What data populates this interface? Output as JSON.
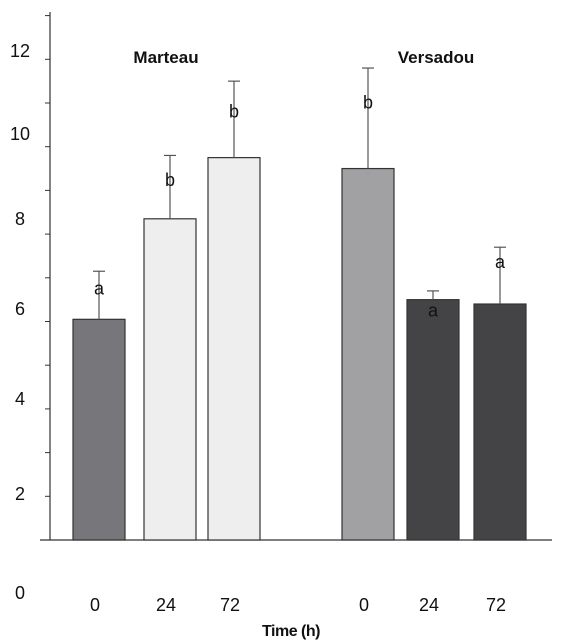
{
  "chart_data": {
    "type": "bar",
    "xlabel": "Time (h)",
    "ylabel": "",
    "ylim": [
      0,
      12.5
    ],
    "y_ticks": [
      "0",
      "2",
      "4",
      "6",
      "8",
      "10",
      "12"
    ],
    "groups": [
      {
        "label": "Marteau",
        "bars": [
          {
            "category": "0",
            "value": 5.05,
            "error": 1.1,
            "significance": "a",
            "color": "#77777b"
          },
          {
            "category": "24",
            "value": 7.35,
            "error": 1.45,
            "significance": "b",
            "color": "#eeeeee"
          },
          {
            "category": "72",
            "value": 8.75,
            "error": 1.75,
            "significance": "b",
            "color": "#eeeeee"
          }
        ]
      },
      {
        "label": "Versadou",
        "bars": [
          {
            "category": "0",
            "value": 8.5,
            "error": 2.3,
            "significance": "b",
            "color": "#a1a1a3"
          },
          {
            "category": "24",
            "value": 5.5,
            "error": 0.2,
            "significance": "a",
            "color": "#444446"
          },
          {
            "category": "72",
            "value": 5.4,
            "error": 1.3,
            "significance": "a",
            "color": "#444446"
          }
        ]
      }
    ],
    "grid": false,
    "legend": "none"
  }
}
